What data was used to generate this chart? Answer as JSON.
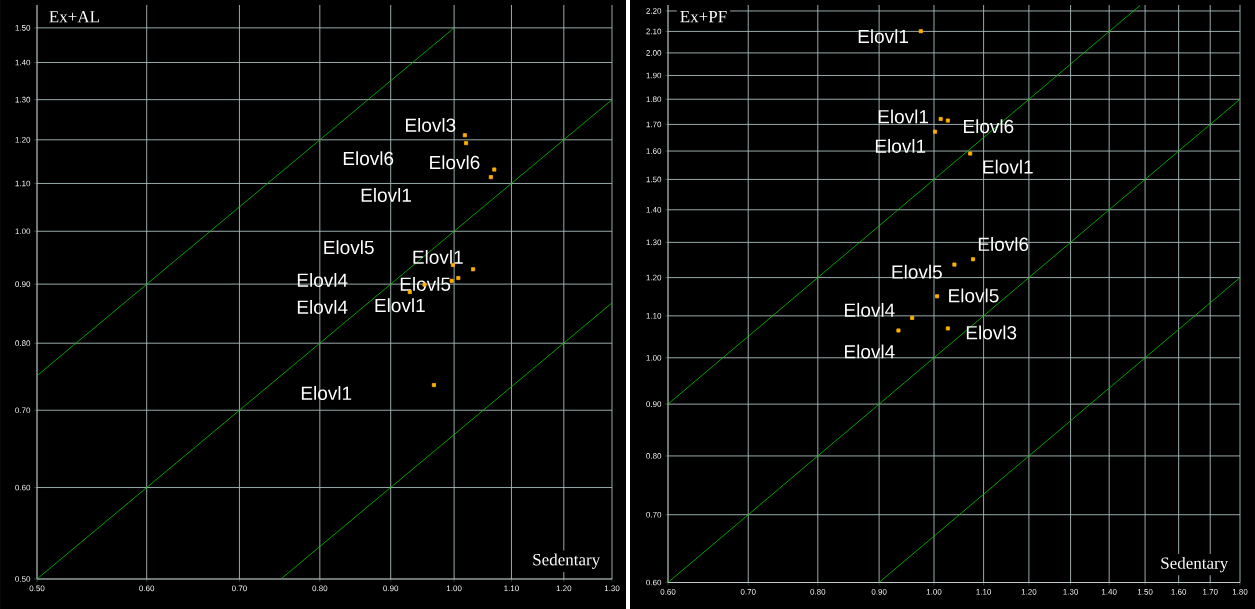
{
  "chart_data": [
    {
      "type": "scatter",
      "ylabel": "Ex+AL",
      "xlabel": "Sedentary",
      "log": "xy",
      "grid": true,
      "xlim": [
        0.5,
        1.3
      ],
      "ylim": [
        0.5,
        1.57
      ],
      "xticks": [
        {
          "value": 0.5,
          "label": "0.50"
        },
        {
          "value": 0.6,
          "label": "0.60"
        },
        {
          "value": 0.7,
          "label": "0.70"
        },
        {
          "value": 0.8,
          "label": "0.80"
        },
        {
          "value": 0.9,
          "label": "0.90"
        },
        {
          "value": 1.0,
          "label": "1.00"
        },
        {
          "value": 1.1,
          "label": "1.10"
        },
        {
          "value": 1.2,
          "label": "1.20"
        },
        {
          "value": 1.3,
          "label": "1.30"
        }
      ],
      "yticks": [
        {
          "value": 0.5,
          "label": "0.50"
        },
        {
          "value": 0.6,
          "label": "0.60"
        },
        {
          "value": 0.7,
          "label": "0.70"
        },
        {
          "value": 0.8,
          "label": "0.80"
        },
        {
          "value": 0.9,
          "label": "0.90"
        },
        {
          "value": 1.0,
          "label": "1.00"
        },
        {
          "value": 1.1,
          "label": "1.10"
        },
        {
          "value": 1.2,
          "label": "1.20"
        },
        {
          "value": 1.3,
          "label": "1.30"
        },
        {
          "value": 1.4,
          "label": "1.40"
        },
        {
          "value": 1.5,
          "label": "1.50"
        }
      ],
      "series": [
        {
          "type": "line",
          "marker": "none",
          "color": "#00c800",
          "x": [
            0.5,
            1.0
          ],
          "values": [
            0.75,
            1.5
          ]
        },
        {
          "type": "line",
          "marker": "none",
          "color": "#00c800",
          "x": [
            0.5,
            1.3
          ],
          "values": [
            0.5,
            1.3
          ]
        },
        {
          "type": "line",
          "marker": "none",
          "color": "#00c800",
          "x": [
            0.75,
            1.3
          ],
          "values": [
            0.5,
            0.867
          ]
        },
        {
          "marker": "square",
          "color": "#ffb000",
          "x": [
            1.018,
            1.02,
            1.069,
            1.063,
            0.998,
            1.032,
            1.007,
            0.996,
            0.952,
            0.929,
            0.967
          ],
          "values": [
            1.211,
            1.192,
            1.131,
            1.114,
            0.935,
            0.927,
            0.911,
            0.906,
            0.899,
            0.886,
            0.736
          ]
        }
      ],
      "annotations": [
        "Elovl3",
        "Elovl6",
        "Elovl6",
        "Elovl1",
        "Elovl5",
        "Elovl1",
        "Elovl4",
        "Elovl5",
        "Elovl4",
        "Elovl1",
        "Elovl1"
      ]
    },
    {
      "type": "scatter",
      "ylabel": "Ex+PF",
      "xlabel": "Sedentary",
      "log": "xy",
      "grid": true,
      "xlim": [
        0.6,
        1.8
      ],
      "ylim": [
        0.6,
        2.23
      ],
      "xticks": [
        {
          "value": 0.6,
          "label": "0.60"
        },
        {
          "value": 0.7,
          "label": "0.70"
        },
        {
          "value": 0.8,
          "label": "0.80"
        },
        {
          "value": 0.9,
          "label": "0.90"
        },
        {
          "value": 1.0,
          "label": "1.00"
        },
        {
          "value": 1.1,
          "label": "1.10"
        },
        {
          "value": 1.2,
          "label": "1.20"
        },
        {
          "value": 1.3,
          "label": "1.30"
        },
        {
          "value": 1.4,
          "label": "1.40"
        },
        {
          "value": 1.5,
          "label": "1.50"
        },
        {
          "value": 1.6,
          "label": "1.60"
        },
        {
          "value": 1.7,
          "label": "1.70"
        },
        {
          "value": 1.8,
          "label": "1.80"
        }
      ],
      "yticks": [
        {
          "value": 0.6,
          "label": "0.60"
        },
        {
          "value": 0.7,
          "label": "0.70"
        },
        {
          "value": 0.8,
          "label": "0.80"
        },
        {
          "value": 0.9,
          "label": "0.90"
        },
        {
          "value": 1.0,
          "label": "1.00"
        },
        {
          "value": 1.1,
          "label": "1.10"
        },
        {
          "value": 1.2,
          "label": "1.20"
        },
        {
          "value": 1.3,
          "label": "1.30"
        },
        {
          "value": 1.4,
          "label": "1.40"
        },
        {
          "value": 1.5,
          "label": "1.50"
        },
        {
          "value": 1.6,
          "label": "1.60"
        },
        {
          "value": 1.7,
          "label": "1.70"
        },
        {
          "value": 1.8,
          "label": "1.80"
        },
        {
          "value": 1.9,
          "label": "1.90"
        },
        {
          "value": 2.0,
          "label": "2.00"
        },
        {
          "value": 2.1,
          "label": "2.10"
        },
        {
          "value": 2.2,
          "label": "2.20"
        }
      ],
      "series": [
        {
          "type": "line",
          "marker": "none",
          "color": "#00c800",
          "x": [
            0.6,
            1.487
          ],
          "values": [
            0.9,
            2.23
          ]
        },
        {
          "type": "line",
          "marker": "none",
          "color": "#00c800",
          "x": [
            0.6,
            1.8
          ],
          "values": [
            0.6,
            1.8
          ]
        },
        {
          "type": "line",
          "marker": "none",
          "color": "#00c800",
          "x": [
            0.9,
            1.8
          ],
          "values": [
            0.6,
            1.2
          ]
        },
        {
          "marker": "square",
          "color": "#ffb000",
          "x": [
            0.975,
            1.013,
            1.027,
            1.002,
            1.072,
            1.078,
            1.04,
            1.006,
            0.959,
            0.934,
            1.027
          ],
          "values": [
            2.101,
            1.721,
            1.715,
            1.672,
            1.591,
            1.251,
            1.236,
            1.15,
            1.095,
            1.064,
            1.069
          ]
        }
      ],
      "annotations": [
        "Elovl1",
        "Elovl1",
        "Elovl6",
        "Elovl1",
        "Elovl1",
        "Elovl6",
        "Elovl5",
        "Elovl5",
        "Elovl4",
        "Elovl3",
        "Elovl4"
      ]
    }
  ]
}
